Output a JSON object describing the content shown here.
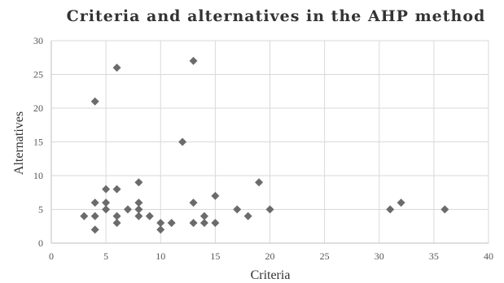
{
  "chart_data": {
    "type": "scatter",
    "title": "Criteria and alternatives in the AHP method",
    "xlabel": "Criteria",
    "ylabel": "Alternatives",
    "xlim": [
      0,
      40
    ],
    "ylim": [
      0,
      30
    ],
    "xticks": [
      0,
      5,
      10,
      15,
      20,
      25,
      30,
      35,
      40
    ],
    "yticks": [
      0,
      5,
      10,
      15,
      20,
      25,
      30
    ],
    "grid": true,
    "marker": "diamond",
    "colors": {
      "point": "#6b6b6b",
      "grid": "#d9d9d9"
    },
    "points": [
      {
        "x": 3,
        "y": 4
      },
      {
        "x": 4,
        "y": 21
      },
      {
        "x": 4,
        "y": 6
      },
      {
        "x": 4,
        "y": 4
      },
      {
        "x": 4,
        "y": 2
      },
      {
        "x": 5,
        "y": 8
      },
      {
        "x": 5,
        "y": 6
      },
      {
        "x": 5,
        "y": 5
      },
      {
        "x": 6,
        "y": 26
      },
      {
        "x": 6,
        "y": 8
      },
      {
        "x": 6,
        "y": 4
      },
      {
        "x": 6,
        "y": 3
      },
      {
        "x": 7,
        "y": 5
      },
      {
        "x": 8,
        "y": 9
      },
      {
        "x": 8,
        "y": 6
      },
      {
        "x": 8,
        "y": 5
      },
      {
        "x": 8,
        "y": 4
      },
      {
        "x": 9,
        "y": 4
      },
      {
        "x": 10,
        "y": 3
      },
      {
        "x": 10,
        "y": 2
      },
      {
        "x": 11,
        "y": 3
      },
      {
        "x": 12,
        "y": 15
      },
      {
        "x": 13,
        "y": 27
      },
      {
        "x": 13,
        "y": 6
      },
      {
        "x": 13,
        "y": 3
      },
      {
        "x": 14,
        "y": 4
      },
      {
        "x": 14,
        "y": 3
      },
      {
        "x": 15,
        "y": 7
      },
      {
        "x": 15,
        "y": 3
      },
      {
        "x": 17,
        "y": 5
      },
      {
        "x": 18,
        "y": 4
      },
      {
        "x": 19,
        "y": 9
      },
      {
        "x": 20,
        "y": 5
      },
      {
        "x": 31,
        "y": 5
      },
      {
        "x": 32,
        "y": 6
      },
      {
        "x": 36,
        "y": 5
      }
    ]
  }
}
